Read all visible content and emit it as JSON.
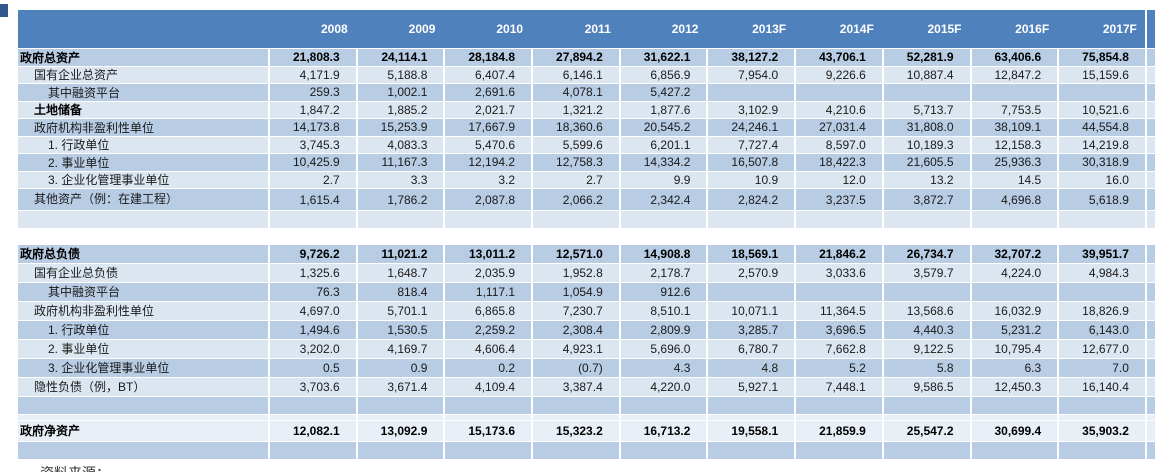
{
  "colors": {
    "header_bg": "#4f81bd",
    "row_medium": "#b8cce4",
    "row_light": "#dce6f1",
    "row_pale": "#e9eff7",
    "header_text": "#ffffff",
    "body_text": "#1a1a1a",
    "corner_mark": "#31598c"
  },
  "table": {
    "columns": [
      "2008",
      "2009",
      "2010",
      "2011",
      "2012",
      "2013F",
      "2014F",
      "2015F",
      "2016F",
      "2017F"
    ],
    "rows": [
      {
        "label": "政府总资产",
        "indent": 0,
        "bold": true,
        "shade": "medium",
        "values": [
          "21,808.3",
          "24,114.1",
          "28,184.8",
          "27,894.2",
          "31,622.1",
          "38,127.2",
          "43,706.1",
          "52,281.9",
          "63,406.6",
          "75,854.8"
        ]
      },
      {
        "label": "国有企业总资产",
        "indent": 1,
        "shade": "light",
        "values": [
          "4,171.9",
          "5,188.8",
          "6,407.4",
          "6,146.1",
          "6,856.9",
          "7,954.0",
          "9,226.6",
          "10,887.4",
          "12,847.2",
          "15,159.6"
        ]
      },
      {
        "label": "其中融资平台",
        "indent": 2,
        "shade": "medium",
        "values": [
          "259.3",
          "1,002.1",
          "2,691.6",
          "4,078.1",
          "5,427.2",
          "",
          "",
          "",
          "",
          ""
        ]
      },
      {
        "label": "土地储备",
        "indent": 1,
        "label_bold": true,
        "shade": "light",
        "values": [
          "1,847.2",
          "1,885.2",
          "2,021.7",
          "1,321.2",
          "1,877.6",
          "3,102.9",
          "4,210.6",
          "5,713.7",
          "7,753.5",
          "10,521.6"
        ]
      },
      {
        "label": "政府机构非盈利性单位",
        "indent": 1,
        "shade": "medium",
        "values": [
          "14,173.8",
          "15,253.9",
          "17,667.9",
          "18,360.6",
          "20,545.2",
          "24,246.1",
          "27,031.4",
          "31,808.0",
          "38,109.1",
          "44,554.8"
        ]
      },
      {
        "label": "1. 行政单位",
        "indent": 2,
        "shade": "light",
        "values": [
          "3,745.3",
          "4,083.3",
          "5,470.6",
          "5,599.6",
          "6,201.1",
          "7,727.4",
          "8,597.0",
          "10,189.3",
          "12,158.3",
          "14,219.8"
        ]
      },
      {
        "label": "2. 事业单位",
        "indent": 2,
        "shade": "medium",
        "values": [
          "10,425.9",
          "11,167.3",
          "12,194.2",
          "12,758.3",
          "14,334.2",
          "16,507.8",
          "18,422.3",
          "21,605.5",
          "25,936.3",
          "30,318.9"
        ]
      },
      {
        "label": "3. 企业化管理事业单位",
        "indent": 2,
        "shade": "light",
        "values": [
          "2.7",
          "3.3",
          "3.2",
          "2.7",
          "9.9",
          "10.9",
          "12.0",
          "13.2",
          "14.5",
          "16.0"
        ]
      },
      {
        "label": "其他资产（例：在建工程）",
        "indent": 1,
        "shade": "medium",
        "h": "tall",
        "values": [
          "1,615.4",
          "1,786.2",
          "2,087.8",
          "2,066.2",
          "2,342.4",
          "2,824.2",
          "3,237.5",
          "3,872.7",
          "4,696.8",
          "5,618.9"
        ]
      },
      {
        "type": "blank",
        "shade": "light"
      },
      {
        "type": "spacer"
      },
      {
        "label": "政府总负债",
        "indent": 0,
        "bold": true,
        "shade": "medium",
        "h": "h19",
        "values": [
          "9,726.2",
          "11,021.2",
          "13,011.2",
          "12,571.0",
          "14,908.8",
          "18,569.1",
          "21,846.2",
          "26,734.7",
          "32,707.2",
          "39,951.7"
        ]
      },
      {
        "label": "国有企业总负债",
        "indent": 1,
        "shade": "light",
        "h": "h19",
        "values": [
          "1,325.6",
          "1,648.7",
          "2,035.9",
          "1,952.8",
          "2,178.7",
          "2,570.9",
          "3,033.6",
          "3,579.7",
          "4,224.0",
          "4,984.3"
        ]
      },
      {
        "label": "其中融资平台",
        "indent": 2,
        "shade": "medium",
        "h": "h19",
        "values": [
          "76.3",
          "818.4",
          "1,117.1",
          "1,054.9",
          "912.6",
          "",
          "",
          "",
          "",
          ""
        ]
      },
      {
        "label": "政府机构非盈利性单位",
        "indent": 1,
        "shade": "light",
        "h": "h19",
        "values": [
          "4,697.0",
          "5,701.1",
          "6,865.8",
          "7,230.7",
          "8,510.1",
          "10,071.1",
          "11,364.5",
          "13,568.6",
          "16,032.9",
          "18,826.9"
        ]
      },
      {
        "label": "1. 行政单位",
        "indent": 2,
        "shade": "medium",
        "h": "h19",
        "values": [
          "1,494.6",
          "1,530.5",
          "2,259.2",
          "2,308.4",
          "2,809.9",
          "3,285.7",
          "3,696.5",
          "4,440.3",
          "5,231.2",
          "6,143.0"
        ]
      },
      {
        "label": "2. 事业单位",
        "indent": 2,
        "shade": "light",
        "h": "h19",
        "values": [
          "3,202.0",
          "4,169.7",
          "4,606.4",
          "4,923.1",
          "5,696.0",
          "6,780.7",
          "7,662.8",
          "9,122.5",
          "10,795.4",
          "12,677.0"
        ]
      },
      {
        "label": "3. 企业化管理事业单位",
        "indent": 2,
        "shade": "medium",
        "h": "h19",
        "values": [
          "0.5",
          "0.9",
          "0.2",
          "(0.7)",
          "4.3",
          "4.8",
          "5.2",
          "5.8",
          "6.3",
          "7.0"
        ]
      },
      {
        "label": "隐性负债（例，BT）",
        "indent": 1,
        "shade": "light",
        "h": "h19",
        "values": [
          "3,703.6",
          "3,671.4",
          "4,109.4",
          "3,387.4",
          "4,220.0",
          "5,927.1",
          "7,448.1",
          "9,586.5",
          "12,450.3",
          "16,140.4"
        ]
      },
      {
        "type": "blank",
        "shade": "medium",
        "h": "h18"
      },
      {
        "type": "blank",
        "shade": "pale",
        "h": "thin"
      },
      {
        "label": "政府净资产",
        "indent": 0,
        "bold": true,
        "shade": "pale",
        "h": "h21",
        "values": [
          "12,082.1",
          "13,092.9",
          "15,173.6",
          "15,323.2",
          "16,713.2",
          "19,558.1",
          "21,859.9",
          "25,547.2",
          "30,699.4",
          "35,903.2"
        ]
      },
      {
        "type": "blank",
        "shade": "medium",
        "h": "h18"
      }
    ]
  },
  "footer_note": "资料来源："
}
